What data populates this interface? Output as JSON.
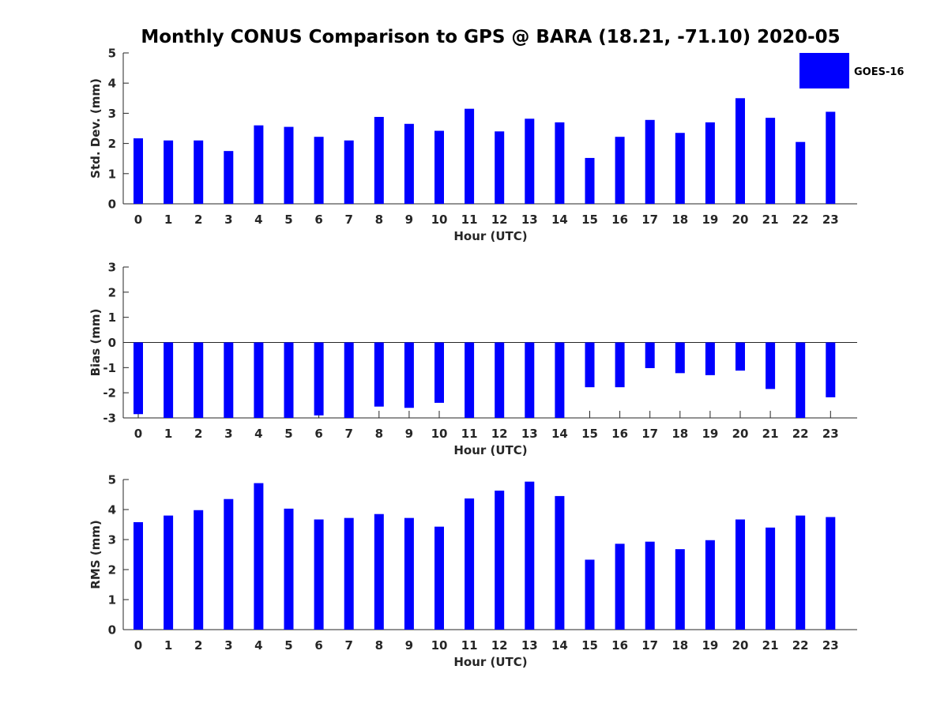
{
  "chart_data": {
    "title": "Monthly CONUS Comparison to GPS @ BARA (18.21, -71.10) 2020-05",
    "legend": {
      "label": "GOES-16",
      "color": "#0000ff",
      "placement": "top-right"
    },
    "categories": [
      "0",
      "1",
      "2",
      "3",
      "4",
      "5",
      "6",
      "7",
      "8",
      "9",
      "10",
      "11",
      "12",
      "13",
      "14",
      "15",
      "16",
      "17",
      "18",
      "19",
      "20",
      "21",
      "22",
      "23"
    ],
    "panels": [
      {
        "type": "bar",
        "name": "std-dev",
        "xlabel": "Hour (UTC)",
        "ylabel": "Std. Dev. (mm)",
        "ylim": [
          0,
          5
        ],
        "yticks": [
          "0",
          "1",
          "2",
          "3",
          "4",
          "5"
        ],
        "values": [
          2.17,
          2.1,
          2.1,
          1.75,
          2.6,
          2.55,
          2.22,
          2.1,
          2.88,
          2.65,
          2.42,
          3.15,
          2.4,
          2.82,
          2.7,
          1.52,
          2.22,
          2.78,
          2.35,
          2.7,
          3.5,
          2.85,
          2.05,
          3.05
        ]
      },
      {
        "type": "bar",
        "name": "bias",
        "xlabel": "Hour (UTC)",
        "ylabel": "Bias (mm)",
        "ylim": [
          -3,
          3
        ],
        "yticks": [
          "-3",
          "-2",
          "-1",
          "0",
          "1",
          "2",
          "3"
        ],
        "values": [
          -2.85,
          -3.0,
          -3.0,
          -3.0,
          -3.0,
          -3.0,
          -2.9,
          -3.0,
          -2.55,
          -2.6,
          -2.4,
          -3.0,
          -3.0,
          -3.0,
          -3.0,
          -1.78,
          -1.78,
          -1.02,
          -1.22,
          -1.3,
          -1.12,
          -1.85,
          -3.0,
          -2.18
        ]
      },
      {
        "type": "bar",
        "name": "rms",
        "xlabel": "Hour (UTC)",
        "ylabel": "RMS (mm)",
        "ylim": [
          0,
          5
        ],
        "yticks": [
          "0",
          "1",
          "2",
          "3",
          "4",
          "5"
        ],
        "values": [
          3.58,
          3.8,
          3.98,
          4.35,
          4.88,
          4.03,
          3.67,
          3.72,
          3.85,
          3.72,
          3.43,
          4.37,
          4.63,
          4.93,
          4.45,
          2.33,
          2.86,
          2.93,
          2.68,
          2.98,
          3.67,
          3.4,
          3.8,
          3.75
        ]
      }
    ]
  }
}
